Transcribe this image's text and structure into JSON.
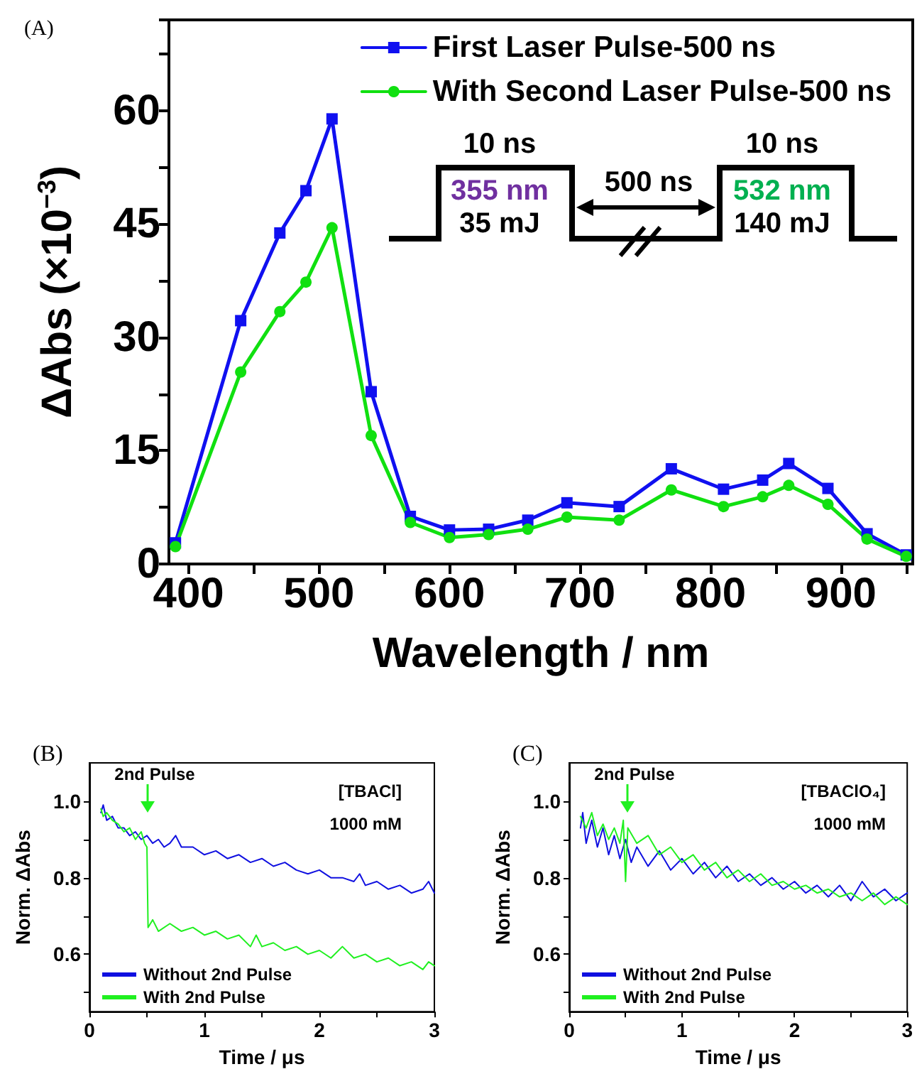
{
  "chart_data": [
    {
      "type": "line",
      "title": "(A)",
      "xlabel": "Wavelength / nm",
      "ylabel": "ΔAbs (×10$^{−3}$)",
      "x": [
        390,
        440,
        470,
        490,
        510,
        540,
        570,
        600,
        630,
        660,
        690,
        730,
        770,
        810,
        840,
        860,
        890,
        920,
        950
      ],
      "series": [
        {
          "name": "First Laser Pulse-500 ns",
          "color": "#1010f0",
          "marker": "square",
          "values": [
            2.8,
            32.2,
            43.8,
            49.4,
            58.9,
            22.8,
            6.3,
            4.5,
            4.6,
            5.8,
            8.1,
            7.6,
            12.6,
            9.9,
            11.1,
            13.3,
            10.0,
            4.0,
            1.2
          ]
        },
        {
          "name": "With Second Laser Pulse-500 ns",
          "color": "#10e010",
          "marker": "circle",
          "values": [
            2.3,
            25.4,
            33.4,
            37.3,
            44.5,
            17.0,
            5.5,
            3.5,
            3.9,
            4.6,
            6.2,
            5.8,
            9.8,
            7.6,
            8.9,
            10.4,
            7.9,
            3.3,
            1.0
          ]
        }
      ],
      "xlim": [
        385,
        955
      ],
      "xticks": [
        400,
        {
          "value": 450,
          "label": null
        },
        500,
        {
          "value": 550,
          "label": null
        },
        600,
        {
          "value": 650,
          "label": null
        },
        700,
        {
          "value": 750,
          "label": null
        },
        800,
        {
          "value": 850,
          "label": null
        },
        900,
        {
          "value": 950,
          "label": null
        }
      ],
      "ylim": [
        0,
        72
      ],
      "yticks": [
        0,
        {
          "value": 7.5,
          "label": null
        },
        15,
        {
          "value": 22.5,
          "label": null
        },
        30,
        {
          "value": 37.5,
          "label": null
        },
        45,
        {
          "value": 52.5,
          "label": null
        },
        60,
        {
          "value": 67.5,
          "label": null
        }
      ],
      "legend": "top right",
      "annotations": [
        "10 ns",
        "355 nm",
        "35 mJ",
        "500 ns",
        "10 ns",
        "532 nm",
        "140 mJ"
      ]
    },
    {
      "type": "line",
      "title": "(B)",
      "xlabel": "Time / μs",
      "ylabel": "Norm. ΔAbs",
      "series": [
        {
          "name": "Without 2nd Pulse",
          "color": "#1010e0",
          "x": [
            0.1,
            0.12,
            0.15,
            0.2,
            0.25,
            0.3,
            0.35,
            0.4,
            0.45,
            0.5,
            0.55,
            0.6,
            0.65,
            0.7,
            0.75,
            0.8,
            0.9,
            1.0,
            1.1,
            1.2,
            1.3,
            1.4,
            1.5,
            1.6,
            1.7,
            1.8,
            1.9,
            2.0,
            2.1,
            2.2,
            2.3,
            2.35,
            2.4,
            2.5,
            2.6,
            2.7,
            2.8,
            2.9,
            2.95,
            3.0
          ],
          "values": [
            0.97,
            0.99,
            0.95,
            0.96,
            0.93,
            0.93,
            0.91,
            0.92,
            0.9,
            0.91,
            0.89,
            0.9,
            0.88,
            0.89,
            0.91,
            0.88,
            0.88,
            0.86,
            0.87,
            0.85,
            0.86,
            0.84,
            0.85,
            0.83,
            0.84,
            0.82,
            0.81,
            0.82,
            0.8,
            0.8,
            0.79,
            0.81,
            0.78,
            0.79,
            0.77,
            0.78,
            0.76,
            0.77,
            0.79,
            0.76
          ]
        },
        {
          "name": "With 2nd Pulse",
          "color": "#20f020",
          "x": [
            0.1,
            0.12,
            0.15,
            0.2,
            0.25,
            0.3,
            0.35,
            0.4,
            0.45,
            0.48,
            0.5,
            0.51,
            0.55,
            0.6,
            0.7,
            0.8,
            0.9,
            1.0,
            1.1,
            1.2,
            1.3,
            1.4,
            1.45,
            1.5,
            1.6,
            1.7,
            1.8,
            1.9,
            2.0,
            2.1,
            2.2,
            2.3,
            2.4,
            2.5,
            2.6,
            2.7,
            2.8,
            2.9,
            2.95,
            3.0
          ],
          "values": [
            0.98,
            0.96,
            0.97,
            0.95,
            0.94,
            0.92,
            0.93,
            0.9,
            0.92,
            0.89,
            0.88,
            0.67,
            0.69,
            0.66,
            0.68,
            0.66,
            0.67,
            0.65,
            0.66,
            0.64,
            0.65,
            0.62,
            0.65,
            0.62,
            0.63,
            0.61,
            0.62,
            0.6,
            0.61,
            0.59,
            0.62,
            0.59,
            0.6,
            0.58,
            0.59,
            0.57,
            0.58,
            0.56,
            0.58,
            0.57
          ]
        }
      ],
      "xlim": [
        0,
        3
      ],
      "xticks": [
        0,
        {
          "value": 0.5,
          "label": null
        },
        1,
        {
          "value": 1.5,
          "label": null
        },
        2,
        {
          "value": 2.5,
          "label": null
        },
        3
      ],
      "ylim": [
        0.45,
        1.1
      ],
      "yticks": [
        {
          "value": 0.5,
          "label": null
        },
        0.6,
        {
          "value": 0.7,
          "label": null
        },
        0.8,
        {
          "value": 0.9,
          "label": null
        },
        {
          "value": 1.0,
          "label": "1.0"
        }
      ],
      "legend": "bottom left",
      "annotations": [
        "2nd Pulse",
        "[TBACl]",
        "1000 mM"
      ]
    },
    {
      "type": "line",
      "title": "(C)",
      "xlabel": "Time / μs",
      "ylabel": "Norm. ΔAbs",
      "series": [
        {
          "name": "Without 2nd Pulse",
          "color": "#1010e0",
          "x": [
            0.1,
            0.12,
            0.15,
            0.2,
            0.25,
            0.3,
            0.35,
            0.4,
            0.45,
            0.5,
            0.55,
            0.6,
            0.7,
            0.8,
            0.9,
            1.0,
            1.1,
            1.2,
            1.3,
            1.4,
            1.5,
            1.6,
            1.7,
            1.8,
            1.9,
            2.0,
            2.1,
            2.2,
            2.3,
            2.4,
            2.5,
            2.6,
            2.7,
            2.8,
            2.9,
            3.0
          ],
          "values": [
            0.93,
            0.97,
            0.89,
            0.95,
            0.88,
            0.93,
            0.86,
            0.91,
            0.85,
            0.9,
            0.84,
            0.88,
            0.83,
            0.87,
            0.82,
            0.85,
            0.81,
            0.84,
            0.8,
            0.83,
            0.79,
            0.81,
            0.78,
            0.8,
            0.77,
            0.79,
            0.76,
            0.78,
            0.75,
            0.78,
            0.74,
            0.79,
            0.75,
            0.77,
            0.74,
            0.76
          ]
        },
        {
          "name": "With 2nd Pulse",
          "color": "#20f020",
          "x": [
            0.1,
            0.15,
            0.2,
            0.25,
            0.3,
            0.35,
            0.4,
            0.45,
            0.48,
            0.5,
            0.52,
            0.6,
            0.7,
            0.8,
            0.9,
            1.0,
            1.1,
            1.2,
            1.3,
            1.4,
            1.5,
            1.6,
            1.7,
            1.8,
            1.9,
            2.0,
            2.1,
            2.2,
            2.3,
            2.4,
            2.5,
            2.6,
            2.7,
            2.8,
            2.9,
            3.0
          ],
          "values": [
            0.96,
            0.93,
            0.97,
            0.91,
            0.94,
            0.9,
            0.93,
            0.89,
            0.95,
            0.79,
            0.93,
            0.89,
            0.91,
            0.86,
            0.88,
            0.84,
            0.86,
            0.82,
            0.84,
            0.8,
            0.82,
            0.79,
            0.81,
            0.78,
            0.79,
            0.77,
            0.78,
            0.76,
            0.77,
            0.75,
            0.76,
            0.74,
            0.76,
            0.73,
            0.75,
            0.73
          ]
        }
      ],
      "xlim": [
        0,
        3
      ],
      "xticks": [
        0,
        {
          "value": 0.5,
          "label": null
        },
        1,
        {
          "value": 1.5,
          "label": null
        },
        2,
        {
          "value": 2.5,
          "label": null
        },
        3
      ],
      "ylim": [
        0.45,
        1.1
      ],
      "yticks": [
        {
          "value": 0.5,
          "label": null
        },
        0.6,
        {
          "value": 0.7,
          "label": null
        },
        0.8,
        {
          "value": 0.9,
          "label": null
        },
        {
          "value": 1.0,
          "label": "1.0"
        }
      ],
      "legend": "bottom left",
      "annotations": [
        "2nd Pulse",
        "[TBAClO₄]",
        "1000 mM"
      ]
    }
  ]
}
